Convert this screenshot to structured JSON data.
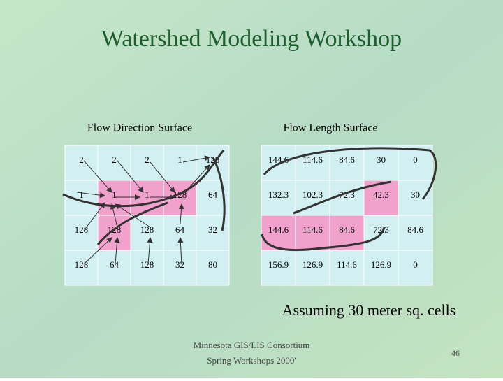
{
  "title": "Watershed Modeling Workshop",
  "left": {
    "heading": "Flow Direction Surface",
    "rows": [
      [
        "2",
        "2",
        "2",
        "1",
        "128"
      ],
      [
        "1",
        "1",
        "1",
        "128",
        "64"
      ],
      [
        "128",
        "128",
        "128",
        "64",
        "32"
      ],
      [
        "128",
        "64",
        "128",
        "32",
        "80"
      ]
    ]
  },
  "right": {
    "heading": "Flow Length Surface",
    "rows": [
      [
        "144.6",
        "114.6",
        "84.6",
        "30",
        "0"
      ],
      [
        "132.3",
        "102.3",
        "72.3",
        "42.3",
        "30"
      ],
      [
        "144.6",
        "114.6",
        "84.6",
        "72.3",
        "84.6"
      ],
      [
        "156.9",
        "126.9",
        "114.6",
        "126.9",
        "0"
      ]
    ]
  },
  "caption": "Assuming 30 meter sq. cells",
  "footer": {
    "line1": "Minnesota GIS/LIS Consortium",
    "line2": "Spring Workshops 2000'"
  },
  "page_number": "46"
}
